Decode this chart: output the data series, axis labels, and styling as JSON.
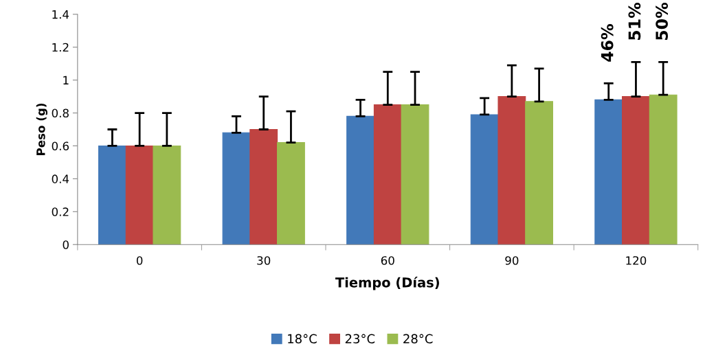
{
  "chart_data": {
    "type": "bar",
    "xlabel": "Tiempo (Días)",
    "ylabel": "Peso (g)",
    "categories": [
      "0",
      "30",
      "60",
      "90",
      "120"
    ],
    "series": [
      {
        "name": "18°C",
        "color": "#4279b9",
        "values": [
          0.6,
          0.68,
          0.78,
          0.79,
          0.88
        ],
        "errors": [
          [
            0.6,
            0.7
          ],
          [
            0.68,
            0.78
          ],
          [
            0.78,
            0.88
          ],
          [
            0.79,
            0.89
          ],
          [
            0.88,
            0.98
          ]
        ]
      },
      {
        "name": "23°C",
        "color": "#bf4341",
        "values": [
          0.6,
          0.7,
          0.85,
          0.9,
          0.9
        ],
        "errors": [
          [
            0.6,
            0.8
          ],
          [
            0.7,
            0.9
          ],
          [
            0.85,
            1.05
          ],
          [
            0.9,
            1.09
          ],
          [
            0.9,
            1.11
          ]
        ]
      },
      {
        "name": "28°C",
        "color": "#9bbb4f",
        "values": [
          0.6,
          0.62,
          0.85,
          0.87,
          0.91
        ],
        "errors": [
          [
            0.6,
            0.8
          ],
          [
            0.62,
            0.81
          ],
          [
            0.85,
            1.05
          ],
          [
            0.87,
            1.07
          ],
          [
            0.91,
            1.11
          ]
        ]
      }
    ],
    "ylim": [
      0,
      1.4
    ],
    "yticks": [
      0,
      0.2,
      0.4,
      0.6,
      0.8,
      1,
      1.2,
      1.4
    ],
    "grid": false,
    "legend": "bottom",
    "annotations": [
      "46%",
      "51%",
      "50%"
    ]
  }
}
